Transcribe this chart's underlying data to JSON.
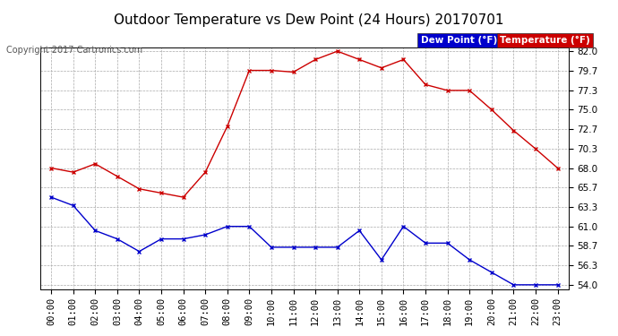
{
  "title": "Outdoor Temperature vs Dew Point (24 Hours) 20170701",
  "copyright": "Copyright 2017 Cartronics.com",
  "hours": [
    "00:00",
    "01:00",
    "02:00",
    "03:00",
    "04:00",
    "05:00",
    "06:00",
    "07:00",
    "08:00",
    "09:00",
    "10:00",
    "11:00",
    "12:00",
    "13:00",
    "14:00",
    "15:00",
    "16:00",
    "17:00",
    "18:00",
    "19:00",
    "20:00",
    "21:00",
    "22:00",
    "23:00"
  ],
  "temperature": [
    68.0,
    67.5,
    68.5,
    67.0,
    65.5,
    65.0,
    64.5,
    67.5,
    73.0,
    79.7,
    79.7,
    79.5,
    81.0,
    82.0,
    81.0,
    80.0,
    81.0,
    78.0,
    77.3,
    77.3,
    75.0,
    72.5,
    70.3,
    68.0
  ],
  "dew_point": [
    64.5,
    63.5,
    60.5,
    59.5,
    58.0,
    59.5,
    59.5,
    60.0,
    61.0,
    61.0,
    58.5,
    58.5,
    58.5,
    58.5,
    60.5,
    57.0,
    61.0,
    59.0,
    59.0,
    57.0,
    55.5,
    54.0,
    54.0,
    54.0
  ],
  "temp_color": "#cc0000",
  "dew_color": "#0000cc",
  "ylim_min": 54.0,
  "ylim_max": 82.0,
  "yticks": [
    54.0,
    56.3,
    58.7,
    61.0,
    63.3,
    65.7,
    68.0,
    70.3,
    72.7,
    75.0,
    77.3,
    79.7,
    82.0
  ],
  "ytick_labels": [
    "54.0",
    "56.3",
    "58.7",
    "61.0",
    "63.3",
    "65.7",
    "68.0",
    "70.3",
    "72.7",
    "75.0",
    "77.3",
    "79.7",
    "82.0"
  ],
  "background_color": "#ffffff",
  "grid_color": "#aaaaaa",
  "title_fontsize": 11,
  "tick_fontsize": 7.5,
  "copyright_fontsize": 7,
  "legend_dew_label": "Dew Point (°F)",
  "legend_temp_label": "Temperature (°F)"
}
